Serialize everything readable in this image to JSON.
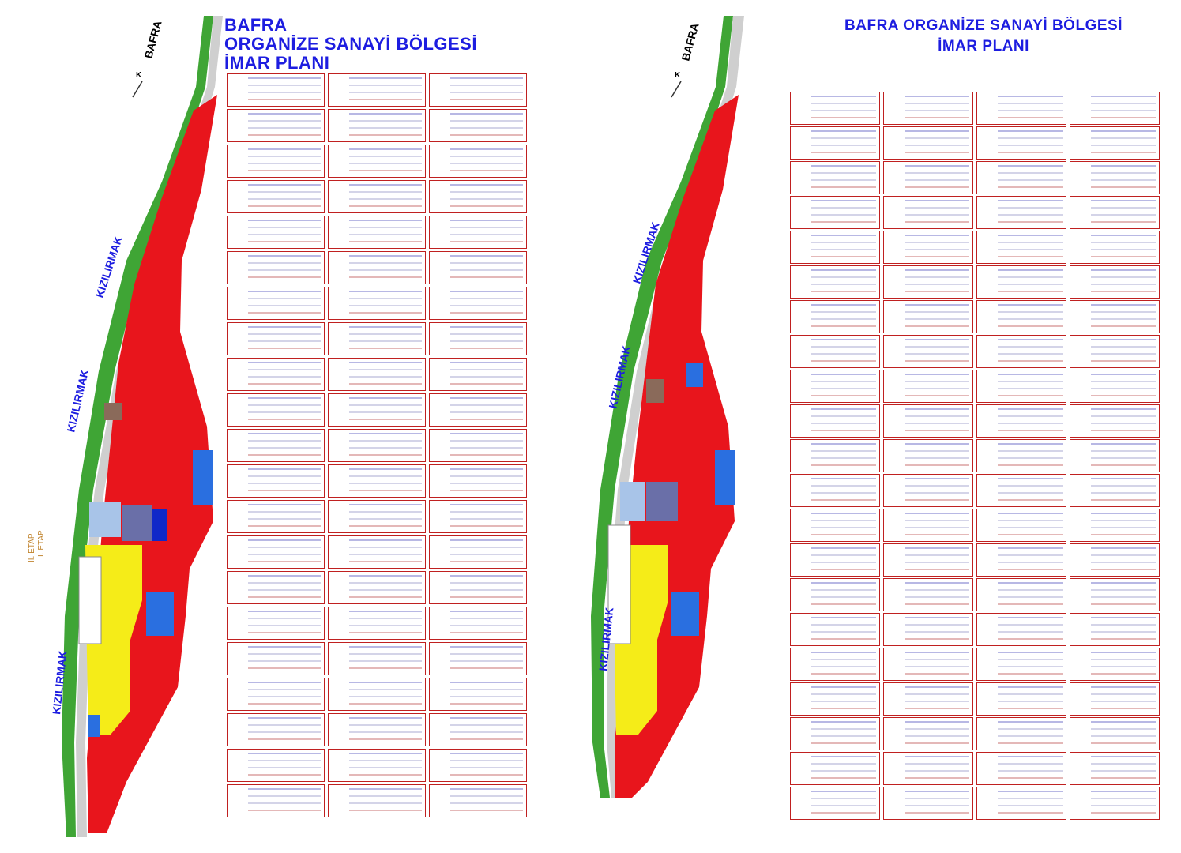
{
  "left_sheet": {
    "title_lines": [
      "BAFRA",
      "ORGANİZE SANAYİ BÖLGESİ",
      "İMAR PLANI"
    ],
    "map_labels": {
      "town": "BAFRA",
      "river": "KIZILIRMAK",
      "north": "K",
      "etap_1": "I. ETAP",
      "etap_2": "II. ETAP"
    }
  },
  "right_sheet": {
    "title_lines": [
      "BAFRA ORGANİZE SANAYİ BÖLGESİ",
      "İMAR PLANI"
    ],
    "map_labels": {
      "town": "BAFRA",
      "river": "KIZILIRMAK",
      "north": "K"
    }
  },
  "colors": {
    "title_blue": "#1d1de0",
    "industrial_red": "#e8151c",
    "green_area": "#3fa535",
    "yellow_parcel": "#f5ec18",
    "blue_parcel": "#2a6fe0",
    "table_number_red": "#cc1010"
  }
}
